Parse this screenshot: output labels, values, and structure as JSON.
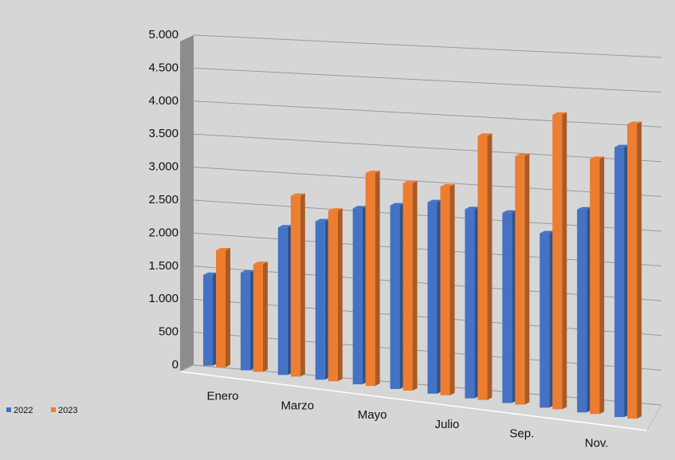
{
  "chart_data": {
    "type": "bar3d",
    "categories": [
      "Enero",
      null,
      "Marzo",
      null,
      "Mayo",
      null,
      "Julio",
      null,
      "Sep.",
      null,
      "Nov.",
      null
    ],
    "series": [
      {
        "name": "2022",
        "color": "#4472c4",
        "values": [
          1400,
          1500,
          2250,
          2400,
          2650,
          2750,
          2850,
          2800,
          2800,
          2550,
          2950,
          3900
        ]
      },
      {
        "name": "2023",
        "color": "#ed7d31",
        "values": [
          1800,
          1650,
          2750,
          2580,
          3200,
          3100,
          3100,
          3900,
          3650,
          4300,
          3700,
          4250
        ]
      }
    ],
    "ylim": [
      0,
      5000
    ],
    "yticks": [
      0,
      500,
      {
        "value": 1000,
        "label": "1.000"
      },
      {
        "value": 1500,
        "label": "1.500"
      },
      {
        "value": 2000,
        "label": "2.000"
      },
      {
        "value": 2500,
        "label": "2.500"
      },
      {
        "value": 3000,
        "label": "3.000"
      },
      {
        "value": 3500,
        "label": "3.500"
      },
      {
        "value": 4000,
        "label": "4.000"
      },
      {
        "value": 4500,
        "label": "4.500"
      },
      {
        "value": 5000,
        "label": "5.000"
      }
    ],
    "grid": true,
    "legend": "bottom-left"
  }
}
